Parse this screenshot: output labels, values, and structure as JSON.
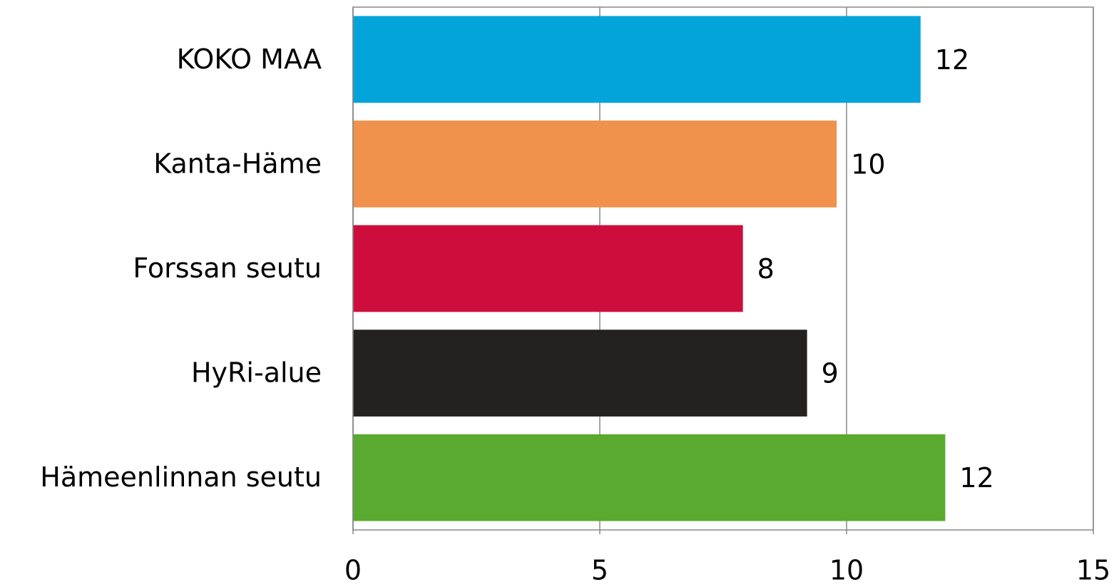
{
  "chart_data": {
    "type": "hbar",
    "categories": [
      "KOKO MAA",
      "Kanta-Häme",
      "Forssan seutu",
      "HyRi-alue",
      "Hämeenlinnan seutu"
    ],
    "values": [
      11.5,
      9.8,
      7.9,
      9.2,
      12.0
    ],
    "value_labels": [
      "12",
      "10",
      "8",
      "9",
      "12"
    ],
    "colors": [
      "#03a4da",
      "#f0924b",
      "#cd0e3c",
      "#232220",
      "#59aa2f"
    ],
    "xlim": [
      0,
      15
    ],
    "xticks": [
      0,
      5,
      10,
      15
    ],
    "grid": true
  }
}
